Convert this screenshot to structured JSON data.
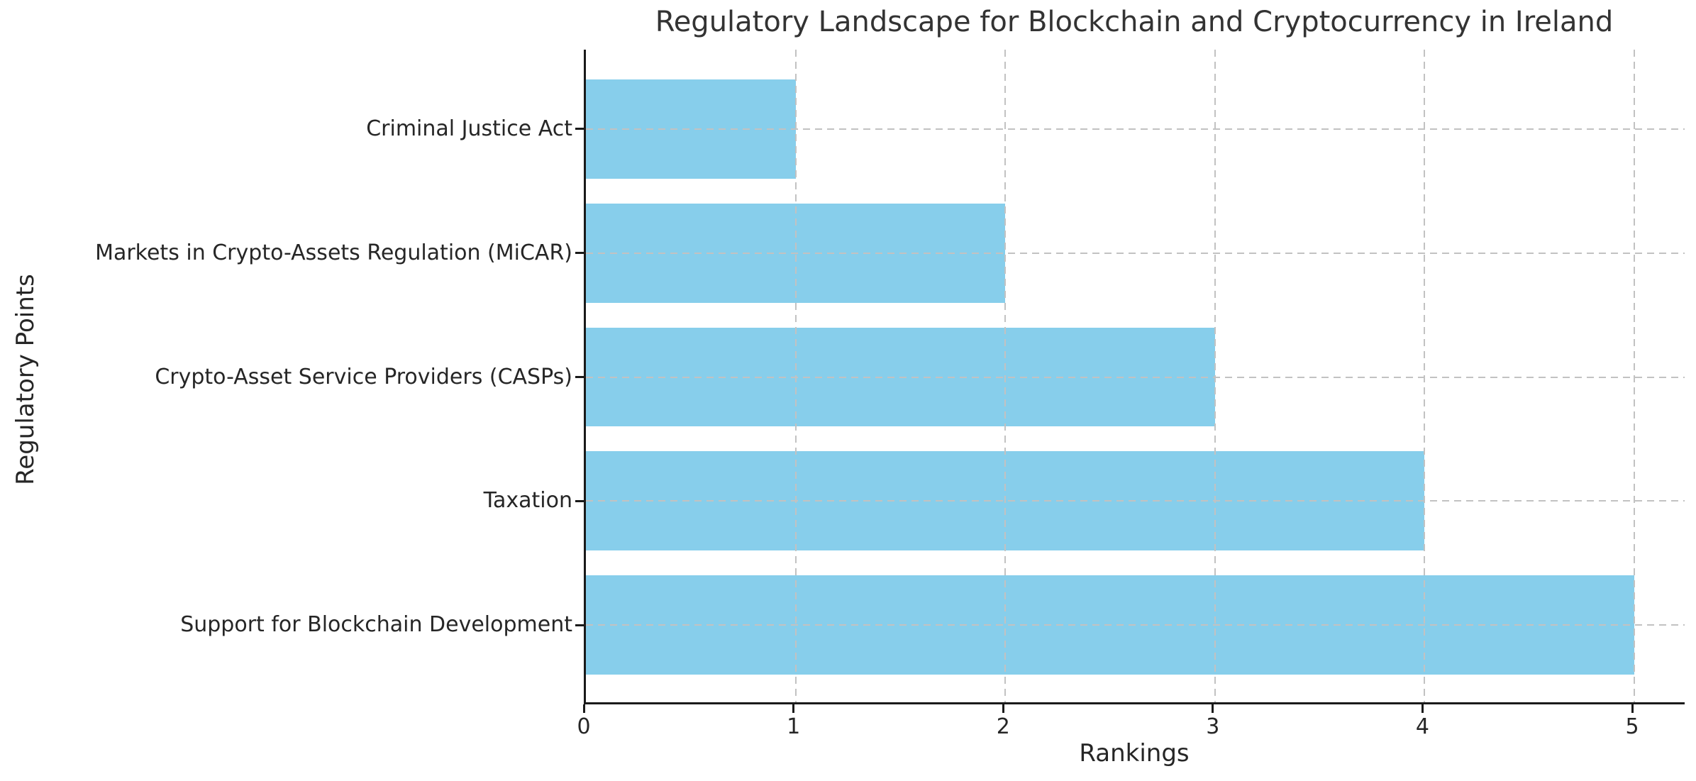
{
  "chart_data": {
    "type": "bar",
    "orientation": "horizontal",
    "title": "Regulatory Landscape for Blockchain and Cryptocurrency in Ireland",
    "xlabel": "Rankings",
    "ylabel": "Regulatory Points",
    "categories": [
      "Criminal Justice Act",
      "Markets in Crypto-Assets Regulation (MiCAR)",
      "Crypto-Asset Service Providers (CASPs)",
      "Taxation",
      "Support for Blockchain Development"
    ],
    "values": [
      1,
      2,
      3,
      4,
      5
    ],
    "x_ticks": [
      "0",
      "1",
      "2",
      "3",
      "4",
      "5"
    ],
    "xlim": [
      0,
      5.25
    ],
    "bar_color": "#87CEEB",
    "bar_height_fraction": 0.8,
    "grid": true,
    "grid_style": "dashed",
    "grid_color": "#c2c2c2",
    "grid_above_bars": true,
    "spines": [
      "left",
      "bottom"
    ],
    "legend": null
  }
}
